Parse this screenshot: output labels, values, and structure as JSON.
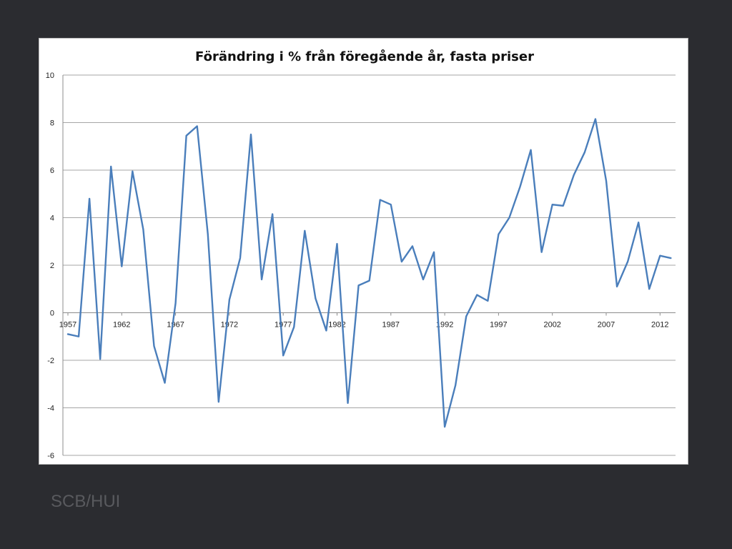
{
  "slide": {
    "source": "SCB/HUI"
  },
  "colors": {
    "background": "#2b2c30",
    "plot_background": "#ffffff",
    "line": "#4a7ebb",
    "grid": "#a6a6a6",
    "source_text": "#595a5e"
  },
  "chart_data": {
    "type": "line",
    "title": "Förändring i % från föregående år, fasta priser",
    "xlabel": "",
    "ylabel": "",
    "ylim": [
      -6,
      10
    ],
    "yticks": [
      -6,
      -4,
      -2,
      0,
      2,
      4,
      6,
      8,
      10
    ],
    "xlim": [
      1957,
      2013
    ],
    "xticks": [
      1957,
      1962,
      1967,
      1972,
      1977,
      1982,
      1987,
      1992,
      1997,
      2002,
      2007,
      2012
    ],
    "grid": true,
    "legend": "none",
    "series": [
      {
        "x": [
          1957,
          1958,
          1959,
          1960,
          1961,
          1962,
          1963,
          1964,
          1965,
          1966,
          1967,
          1968,
          1969,
          1970,
          1971,
          1972,
          1973,
          1974,
          1975,
          1976,
          1977,
          1978,
          1979,
          1980,
          1981,
          1982,
          1983,
          1984,
          1985,
          1986,
          1987,
          1988,
          1989,
          1990,
          1991,
          1992,
          1993,
          1994,
          1995,
          1996,
          1997,
          1998,
          1999,
          2000,
          2001,
          2002,
          2003,
          2004,
          2005,
          2006,
          2007,
          2008,
          2009,
          2010,
          2011,
          2012,
          2013
        ],
        "values": [
          -0.9,
          -1.0,
          4.8,
          -1.95,
          6.15,
          1.95,
          5.95,
          3.5,
          -1.4,
          -2.95,
          0.4,
          7.45,
          7.85,
          3.3,
          -3.75,
          0.55,
          2.3,
          7.5,
          1.4,
          4.15,
          -1.8,
          -0.6,
          3.45,
          0.6,
          -0.75,
          2.9,
          -3.8,
          1.15,
          1.35,
          4.75,
          4.55,
          2.15,
          2.8,
          1.4,
          2.55,
          -4.8,
          -3.05,
          -0.15,
          0.75,
          0.5,
          3.3,
          4.0,
          5.3,
          6.85,
          2.55,
          4.55,
          4.5,
          5.8,
          6.75,
          8.15,
          5.55,
          1.1,
          2.15,
          3.8,
          1.0,
          2.4,
          2.3
        ]
      }
    ]
  }
}
